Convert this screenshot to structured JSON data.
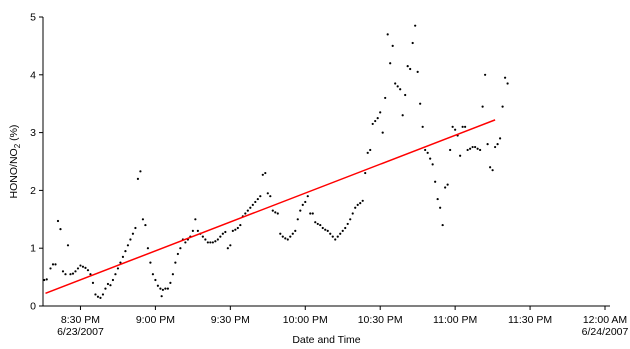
{
  "chart_data": {
    "type": "scatter",
    "title": "",
    "xlabel": "Date and Time",
    "ylabel": {
      "base": "HONO/NO",
      "sub": "2",
      "suffix": " (%)"
    },
    "x_unit": "minutes after 8:15 PM 6/23/2007",
    "xlim": [
      0,
      227
    ],
    "ylim": [
      0,
      5
    ],
    "x_ticks": [
      {
        "x": 15,
        "line1": "8:30 PM",
        "line2": "6/23/2007"
      },
      {
        "x": 45,
        "line1": "9:00 PM",
        "line2": ""
      },
      {
        "x": 75,
        "line1": "9:30 PM",
        "line2": ""
      },
      {
        "x": 105,
        "line1": "10:00 PM",
        "line2": ""
      },
      {
        "x": 135,
        "line1": "10:30 PM",
        "line2": ""
      },
      {
        "x": 165,
        "line1": "11:00 PM",
        "line2": ""
      },
      {
        "x": 195,
        "line1": "11:30 PM",
        "line2": ""
      },
      {
        "x": 225,
        "line1": "12:00 AM",
        "line2": "6/24/2007"
      }
    ],
    "y_ticks": [
      0,
      1,
      2,
      3,
      4,
      5
    ],
    "grid": false,
    "legend": "none",
    "series": [
      {
        "kind": "scatter",
        "color": "#000000",
        "points": [
          [
            0.5,
            0.45
          ],
          [
            1.5,
            0.46
          ],
          [
            3.0,
            0.65
          ],
          [
            4.0,
            0.72
          ],
          [
            5.0,
            0.72
          ],
          [
            6.0,
            1.47
          ],
          [
            7.0,
            1.33
          ],
          [
            8.0,
            0.6
          ],
          [
            9.0,
            0.55
          ],
          [
            10.0,
            1.05
          ],
          [
            11.0,
            0.55
          ],
          [
            12.0,
            0.56
          ],
          [
            13.0,
            0.6
          ],
          [
            14.0,
            0.65
          ],
          [
            15.0,
            0.7
          ],
          [
            16.0,
            0.68
          ],
          [
            17.0,
            0.66
          ],
          [
            18.0,
            0.62
          ],
          [
            19.0,
            0.55
          ],
          [
            20.0,
            0.4
          ],
          [
            21.0,
            0.2
          ],
          [
            22.0,
            0.16
          ],
          [
            23.0,
            0.14
          ],
          [
            24.0,
            0.2
          ],
          [
            25.0,
            0.3
          ],
          [
            26.0,
            0.38
          ],
          [
            27.0,
            0.36
          ],
          [
            28.0,
            0.45
          ],
          [
            29.0,
            0.55
          ],
          [
            30.0,
            0.65
          ],
          [
            31.0,
            0.75
          ],
          [
            32.0,
            0.85
          ],
          [
            33.0,
            0.95
          ],
          [
            34.0,
            1.05
          ],
          [
            35.0,
            1.15
          ],
          [
            36.0,
            1.25
          ],
          [
            37.0,
            1.35
          ],
          [
            38.0,
            2.2
          ],
          [
            39.0,
            2.33
          ],
          [
            40.0,
            1.5
          ],
          [
            41.0,
            1.4
          ],
          [
            42.0,
            1.0
          ],
          [
            43.0,
            0.75
          ],
          [
            44.0,
            0.55
          ],
          [
            45.0,
            0.45
          ],
          [
            46.0,
            0.35
          ],
          [
            47.0,
            0.3
          ],
          [
            47.5,
            0.17
          ],
          [
            48.0,
            0.28
          ],
          [
            49.0,
            0.3
          ],
          [
            50.0,
            0.3
          ],
          [
            51.0,
            0.4
          ],
          [
            52.0,
            0.55
          ],
          [
            53.0,
            0.75
          ],
          [
            54.0,
            0.9
          ],
          [
            55.0,
            1.0
          ],
          [
            56.0,
            1.15
          ],
          [
            57.0,
            1.1
          ],
          [
            58.0,
            1.15
          ],
          [
            59.0,
            1.2
          ],
          [
            60.0,
            1.3
          ],
          [
            61.0,
            1.5
          ],
          [
            62.0,
            1.3
          ],
          [
            63.0,
            1.25
          ],
          [
            64.0,
            1.2
          ],
          [
            65.0,
            1.15
          ],
          [
            66.0,
            1.1
          ],
          [
            67.0,
            1.1
          ],
          [
            68.0,
            1.1
          ],
          [
            69.0,
            1.12
          ],
          [
            70.0,
            1.15
          ],
          [
            71.0,
            1.2
          ],
          [
            72.0,
            1.25
          ],
          [
            73.0,
            1.28
          ],
          [
            74.0,
            1.0
          ],
          [
            75.0,
            1.05
          ],
          [
            76.0,
            1.3
          ],
          [
            77.0,
            1.32
          ],
          [
            78.0,
            1.35
          ],
          [
            79.0,
            1.4
          ],
          [
            80.0,
            1.55
          ],
          [
            81.0,
            1.6
          ],
          [
            82.0,
            1.65
          ],
          [
            83.0,
            1.7
          ],
          [
            84.0,
            1.75
          ],
          [
            85.0,
            1.8
          ],
          [
            86.0,
            1.85
          ],
          [
            87.0,
            1.9
          ],
          [
            88.0,
            2.27
          ],
          [
            89.0,
            2.3
          ],
          [
            90.0,
            1.95
          ],
          [
            91.0,
            1.9
          ],
          [
            92.0,
            1.65
          ],
          [
            93.0,
            1.62
          ],
          [
            94.0,
            1.6
          ],
          [
            95.0,
            1.25
          ],
          [
            96.0,
            1.2
          ],
          [
            97.0,
            1.17
          ],
          [
            98.0,
            1.15
          ],
          [
            99.0,
            1.2
          ],
          [
            100.0,
            1.25
          ],
          [
            101.0,
            1.3
          ],
          [
            102.0,
            1.5
          ],
          [
            103.0,
            1.65
          ],
          [
            104.0,
            1.75
          ],
          [
            105.0,
            1.8
          ],
          [
            106.0,
            1.9
          ],
          [
            107.0,
            1.6
          ],
          [
            108.0,
            1.6
          ],
          [
            109.0,
            1.45
          ],
          [
            110.0,
            1.42
          ],
          [
            111.0,
            1.4
          ],
          [
            112.0,
            1.35
          ],
          [
            113.0,
            1.32
          ],
          [
            114.0,
            1.3
          ],
          [
            115.0,
            1.25
          ],
          [
            116.0,
            1.2
          ],
          [
            117.0,
            1.15
          ],
          [
            118.0,
            1.2
          ],
          [
            119.0,
            1.25
          ],
          [
            120.0,
            1.3
          ],
          [
            121.0,
            1.35
          ],
          [
            122.0,
            1.42
          ],
          [
            123.0,
            1.5
          ],
          [
            124.0,
            1.6
          ],
          [
            125.0,
            1.7
          ],
          [
            126.0,
            1.75
          ],
          [
            127.0,
            1.78
          ],
          [
            128.0,
            1.82
          ],
          [
            129.0,
            2.3
          ],
          [
            130.0,
            2.65
          ],
          [
            131.0,
            2.7
          ],
          [
            132.0,
            3.15
          ],
          [
            133.0,
            3.2
          ],
          [
            134.0,
            3.25
          ],
          [
            135.0,
            3.35
          ],
          [
            136.0,
            3.0
          ],
          [
            137.0,
            3.6
          ],
          [
            138.0,
            4.7
          ],
          [
            139.0,
            4.2
          ],
          [
            140.0,
            4.5
          ],
          [
            141.0,
            3.85
          ],
          [
            142.0,
            3.8
          ],
          [
            143.0,
            3.75
          ],
          [
            144.0,
            3.3
          ],
          [
            145.0,
            3.65
          ],
          [
            146.0,
            4.15
          ],
          [
            147.0,
            4.1
          ],
          [
            148.0,
            4.55
          ],
          [
            149.0,
            4.85
          ],
          [
            150.0,
            4.05
          ],
          [
            151.0,
            3.5
          ],
          [
            152.0,
            3.1
          ],
          [
            153.0,
            2.7
          ],
          [
            154.0,
            2.65
          ],
          [
            155.0,
            2.55
          ],
          [
            156.0,
            2.45
          ],
          [
            157.0,
            2.15
          ],
          [
            158.0,
            1.85
          ],
          [
            159.0,
            1.7
          ],
          [
            160.0,
            1.4
          ],
          [
            161.0,
            2.05
          ],
          [
            162.0,
            2.1
          ],
          [
            163.0,
            2.7
          ],
          [
            164.0,
            3.1
          ],
          [
            165.0,
            3.05
          ],
          [
            166.0,
            2.95
          ],
          [
            167.0,
            2.6
          ],
          [
            168.0,
            3.1
          ],
          [
            169.0,
            3.1
          ],
          [
            170.0,
            2.7
          ],
          [
            171.0,
            2.72
          ],
          [
            172.0,
            2.75
          ],
          [
            173.0,
            2.75
          ],
          [
            174.0,
            2.72
          ],
          [
            175.0,
            2.7
          ],
          [
            176.0,
            3.45
          ],
          [
            177.0,
            4.0
          ],
          [
            178.0,
            2.8
          ],
          [
            179.0,
            2.4
          ],
          [
            180.0,
            2.35
          ],
          [
            181.0,
            2.75
          ],
          [
            182.0,
            2.8
          ],
          [
            183.0,
            2.9
          ],
          [
            184.0,
            3.45
          ],
          [
            185.0,
            3.95
          ],
          [
            186.0,
            3.85
          ]
        ]
      },
      {
        "kind": "trend-line",
        "color": "#ff0000",
        "x": [
          1,
          181
        ],
        "y": [
          0.22,
          3.22
        ]
      }
    ]
  }
}
